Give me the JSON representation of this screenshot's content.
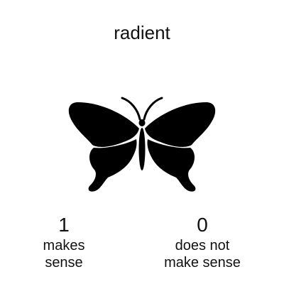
{
  "word": "radient",
  "picture": {
    "icon": "butterfly-icon",
    "color": "#000000"
  },
  "options": [
    {
      "value": "1",
      "lines": [
        "makes",
        "sense"
      ]
    },
    {
      "value": "0",
      "lines": [
        "does not",
        "make sense"
      ]
    }
  ]
}
